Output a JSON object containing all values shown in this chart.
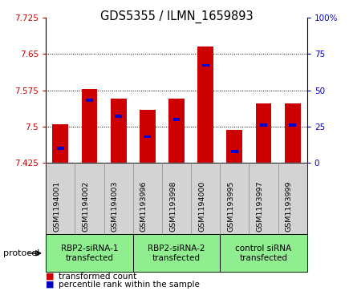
{
  "title": "GDS5355 / ILMN_1659893",
  "samples": [
    "GSM1194001",
    "GSM1194002",
    "GSM1194003",
    "GSM1193996",
    "GSM1193998",
    "GSM1194000",
    "GSM1193995",
    "GSM1193997",
    "GSM1193999"
  ],
  "red_values": [
    7.505,
    7.578,
    7.558,
    7.535,
    7.558,
    7.665,
    7.493,
    7.548,
    7.548
  ],
  "blue_percentiles": [
    10,
    43,
    32,
    18,
    30,
    67,
    8,
    26,
    26
  ],
  "ylim_left": [
    7.425,
    7.725
  ],
  "ylim_right": [
    0,
    100
  ],
  "yticks_left": [
    7.425,
    7.5,
    7.575,
    7.65,
    7.725
  ],
  "ytick_labels_left": [
    "7.425",
    "7.5",
    "7.575",
    "7.65",
    "7.725"
  ],
  "yticks_right": [
    0,
    25,
    50,
    75,
    100
  ],
  "ytick_labels_right": [
    "0",
    "25",
    "50",
    "75",
    "100%"
  ],
  "bar_bottom": 7.425,
  "bar_width": 0.55,
  "groups": [
    {
      "label": "RBP2-siRNA-1\ntransfected",
      "indices": [
        0,
        1,
        2
      ],
      "color": "#90EE90"
    },
    {
      "label": "RBP2-siRNA-2\ntransfected",
      "indices": [
        3,
        4,
        5
      ],
      "color": "#90EE90"
    },
    {
      "label": "control siRNA\ntransfected",
      "indices": [
        6,
        7,
        8
      ],
      "color": "#90EE90"
    }
  ],
  "protocol_label": "protocol",
  "legend_red_label": "transformed count",
  "legend_blue_label": "percentile rank within the sample",
  "red_color": "#CC0000",
  "blue_color": "#0000CC",
  "left_axis_color": "#CC0000",
  "right_axis_color": "#0000CC",
  "grid_color": "#000000",
  "background_color": "#FFFFFF",
  "sample_bg": "#D3D3D3",
  "group_bg": "#90EE90"
}
